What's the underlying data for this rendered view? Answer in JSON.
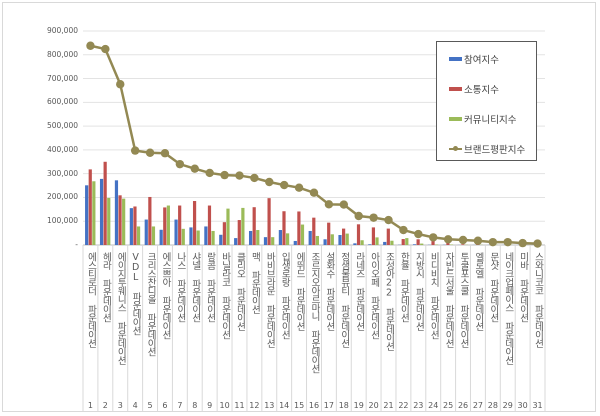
{
  "chart_data": {
    "type": "bar",
    "title": "",
    "xlabel": "",
    "ylabel": "",
    "ylim": [
      0,
      900000
    ],
    "yticks": [
      "-",
      "100,000",
      "200,000",
      "300,000",
      "400,000",
      "500,000",
      "600,000",
      "700,000",
      "800,000",
      "900,000"
    ],
    "grid": true,
    "legend_position": "top-right",
    "categories": [
      "에스티로더 파운데이션",
      "헤라 파운데이션",
      "에이지투웨니스 파운데이션",
      "VDL 파운데이션",
      "크리스찬디올 파운데이션",
      "에스쁘아 파운데이션",
      "나스 파운데이션",
      "샤넬 파운데이션",
      "랑콤 파운데이션",
      "바닐라코 파운데이션",
      "클리오 파운데이션",
      "맥 파운데이션",
      "바비브라운 파운데이션",
      "입생로랑 파운데이션",
      "에뛰드 파운데이션",
      "조르지오아르마니 파운데이션",
      "설화수 파운데이션",
      "정샘물뷰티 파운데이션",
      "라네즈 파운데이션",
      "아이오페 파운데이션",
      "조성아22 파운데이션",
      "한율 파운데이션",
      "지방시 파운데이션",
      "비디비치 파운데이션",
      "자빈드서울 파운데이션",
      "투쿨포스쿨 파운데이션",
      "엘로엘 파운데이션",
      "문샷 파운데이션",
      "네이크업페이스 파운데이션",
      "미바 파운데이션",
      "스와니코코 파운데이션"
    ],
    "ranks": [
      "1",
      "2",
      "3",
      "4",
      "5",
      "6",
      "7",
      "8",
      "9",
      "10",
      "11",
      "12",
      "13",
      "14",
      "15",
      "16",
      "17",
      "18",
      "19",
      "20",
      "21",
      "22",
      "23",
      "24",
      "25",
      "26",
      "27",
      "28",
      "29",
      "30",
      "31"
    ],
    "series": [
      {
        "name": "참여지수",
        "type": "bar",
        "color": "#4472c4",
        "values": [
          251000,
          278000,
          272000,
          155000,
          107000,
          64000,
          107000,
          74000,
          78000,
          43000,
          29000,
          59000,
          33000,
          63000,
          17000,
          59000,
          24000,
          42000,
          7000,
          3000,
          13000,
          1000,
          3000,
          1000,
          1000,
          500,
          500,
          500,
          500,
          500,
          500
        ]
      },
      {
        "name": "소통지수",
        "type": "bar",
        "color": "#c0504d",
        "values": [
          318000,
          350000,
          209000,
          162000,
          202000,
          158000,
          166000,
          185000,
          166000,
          96000,
          105000,
          159000,
          197000,
          142000,
          141000,
          115000,
          94000,
          69000,
          87000,
          74000,
          69000,
          25000,
          24000,
          18000,
          12000,
          3000,
          2000,
          2000,
          2000,
          1000,
          1000
        ]
      },
      {
        "name": "커뮤니티지수",
        "type": "bar",
        "color": "#9bbb59",
        "values": [
          268000,
          198000,
          195000,
          78000,
          78000,
          166000,
          68000,
          61000,
          59000,
          153000,
          156000,
          63000,
          33000,
          49000,
          86000,
          38000,
          45000,
          48000,
          20000,
          32000,
          18000,
          29000,
          6000,
          2000,
          2000,
          1000,
          1000,
          1000,
          1000,
          500,
          500
        ]
      },
      {
        "name": "브랜드평판지수",
        "type": "line",
        "color": "#938953",
        "values": [
          838000,
          824000,
          676000,
          397000,
          388000,
          386000,
          340000,
          321000,
          303000,
          294000,
          292000,
          282000,
          265000,
          252000,
          241000,
          220000,
          171000,
          170000,
          122000,
          115000,
          105000,
          63000,
          46000,
          32000,
          24000,
          21000,
          18000,
          12000,
          12000,
          8000,
          6000
        ]
      }
    ]
  }
}
